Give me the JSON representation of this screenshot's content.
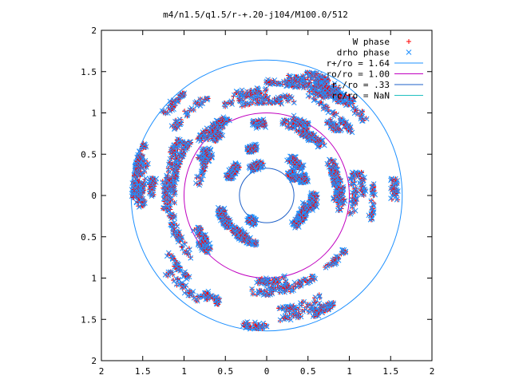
{
  "chart_data": {
    "type": "scatter",
    "title": "m4/n1.5/q1.5/r-+.20-j104/M100.0/512",
    "xlabel": "",
    "ylabel": "",
    "xlim": [
      -2,
      2
    ],
    "ylim": [
      -2,
      2
    ],
    "x_ticks": [
      {
        "value": -2,
        "label": "2"
      },
      {
        "value": -1.5,
        "label": "1.5"
      },
      {
        "value": -1,
        "label": "1"
      },
      {
        "value": -0.5,
        "label": "0.5"
      },
      {
        "value": 0,
        "label": "0"
      },
      {
        "value": 0.5,
        "label": "0.5"
      },
      {
        "value": 1,
        "label": "1"
      },
      {
        "value": 1.5,
        "label": "1.5"
      },
      {
        "value": 2,
        "label": "2"
      }
    ],
    "y_ticks": [
      {
        "value": 2,
        "label": "2"
      },
      {
        "value": 1.5,
        "label": "1.5"
      },
      {
        "value": 1,
        "label": "1"
      },
      {
        "value": 0.5,
        "label": "0.5"
      },
      {
        "value": 0,
        "label": "0"
      },
      {
        "value": -0.5,
        "label": "0.5"
      },
      {
        "value": -1,
        "label": "1"
      },
      {
        "value": -1.5,
        "label": "1.5"
      },
      {
        "value": -2,
        "label": "2"
      }
    ],
    "grid": false,
    "legend_position": "top-right",
    "series": [
      {
        "name": "W phase",
        "kind": "points",
        "marker": "plus",
        "color": "#ff0000"
      },
      {
        "name": "drho phase",
        "kind": "points",
        "marker": "cross",
        "color": "#1e90ff"
      },
      {
        "name": "r+/ro = 1.64",
        "kind": "circle",
        "radius": 1.64,
        "color": "#1e90ff"
      },
      {
        "name": "ro/ro = 1.00",
        "kind": "circle",
        "radius": 1.0,
        "color": "#c000c0"
      },
      {
        "name": "r-/ro = .33",
        "kind": "circle",
        "radius": 0.33,
        "color": "#1e60c8"
      },
      {
        "name": "rc/ro = NaN",
        "kind": "circle",
        "radius": null,
        "color": "#20c0c0"
      }
    ],
    "point_bands": [
      {
        "r_min": 0.33,
        "r_max": 0.62,
        "count": 900
      },
      {
        "r_min": 0.82,
        "r_max": 1.08,
        "count": 650
      },
      {
        "r_min": 1.12,
        "r_max": 1.3,
        "count": 550
      },
      {
        "r_min": 1.36,
        "r_max": 1.62,
        "count": 800
      }
    ]
  }
}
